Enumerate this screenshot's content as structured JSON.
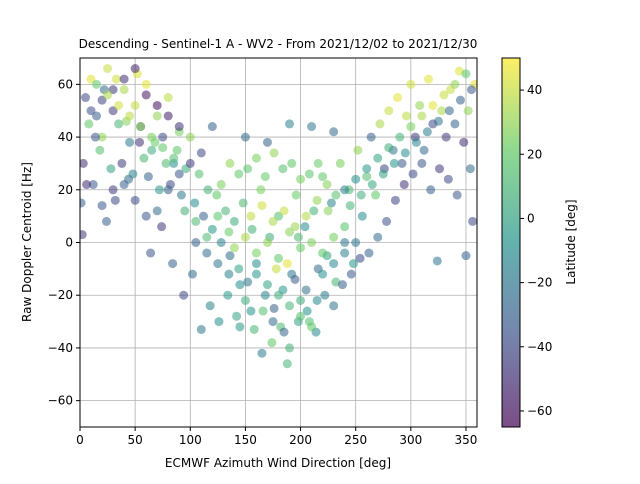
{
  "chart_data": {
    "type": "scatter",
    "title": "Descending - Sentinel-1 A - WV2 - From 2021/12/02 to 2021/12/30",
    "xlabel": "ECMWF Azimuth Wind Direction [deg]",
    "ylabel": "Raw Doppler Centroid [Hz]",
    "xlim": [
      0,
      360
    ],
    "ylim": [
      -70,
      70
    ],
    "xticks": [
      0,
      50,
      100,
      150,
      200,
      250,
      300,
      350
    ],
    "yticks": [
      -60,
      -40,
      -20,
      0,
      20,
      40,
      60
    ],
    "grid": true,
    "colorbar": {
      "label": "Latitude [deg]",
      "range": [
        -65,
        50
      ],
      "ticks": [
        -60,
        -40,
        -20,
        0,
        20,
        40
      ],
      "colormap": "viridis",
      "colors": [
        "#440154",
        "#3b528b",
        "#21918c",
        "#5ec962",
        "#fde725"
      ]
    },
    "point_alpha": 0.55,
    "points": [
      [
        5,
        55,
        -40
      ],
      [
        10,
        62,
        45
      ],
      [
        15,
        48,
        -30
      ],
      [
        20,
        40,
        30
      ],
      [
        25,
        66,
        40
      ],
      [
        30,
        50,
        -45
      ],
      [
        35,
        45,
        10
      ],
      [
        40,
        58,
        35
      ],
      [
        45,
        38,
        -20
      ],
      [
        50,
        52,
        40
      ],
      [
        55,
        44,
        -35
      ],
      [
        60,
        60,
        45
      ],
      [
        65,
        35,
        5
      ],
      [
        70,
        48,
        30
      ],
      [
        75,
        40,
        -40
      ],
      [
        80,
        55,
        38
      ],
      [
        85,
        30,
        -10
      ],
      [
        90,
        42,
        25
      ],
      [
        3,
        30,
        -50
      ],
      [
        8,
        45,
        20
      ],
      [
        12,
        22,
        -35
      ],
      [
        18,
        35,
        15
      ],
      [
        22,
        58,
        -25
      ],
      [
        28,
        28,
        0
      ],
      [
        33,
        62,
        42
      ],
      [
        38,
        30,
        -45
      ],
      [
        42,
        46,
        28
      ],
      [
        48,
        26,
        -15
      ],
      [
        52,
        64,
        44
      ],
      [
        58,
        32,
        10
      ],
      [
        62,
        25,
        -30
      ],
      [
        68,
        38,
        22
      ],
      [
        72,
        20,
        -5
      ],
      [
        78,
        30,
        12
      ],
      [
        82,
        22,
        -40
      ],
      [
        88,
        35,
        18
      ],
      [
        92,
        18,
        -20
      ],
      [
        96,
        28,
        5
      ],
      [
        100,
        40,
        30
      ],
      [
        104,
        15,
        -10
      ],
      [
        108,
        26,
        15
      ],
      [
        112,
        10,
        -30
      ],
      [
        116,
        20,
        8
      ],
      [
        120,
        5,
        -5
      ],
      [
        124,
        18,
        20
      ],
      [
        128,
        0,
        -15
      ],
      [
        132,
        12,
        10
      ],
      [
        136,
        -5,
        -25
      ],
      [
        140,
        8,
        5
      ],
      [
        144,
        -10,
        0
      ],
      [
        148,
        15,
        12
      ],
      [
        152,
        -15,
        -20
      ],
      [
        156,
        5,
        8
      ],
      [
        160,
        -8,
        -10
      ],
      [
        164,
        20,
        25
      ],
      [
        168,
        -20,
        -15
      ],
      [
        172,
        2,
        5
      ],
      [
        176,
        -25,
        -30
      ],
      [
        180,
        10,
        15
      ],
      [
        184,
        -18,
        -5
      ],
      [
        188,
        -46,
        10
      ],
      [
        192,
        -12,
        -20
      ],
      [
        196,
        18,
        22
      ],
      [
        200,
        -22,
        5
      ],
      [
        204,
        6,
        -10
      ],
      [
        208,
        -30,
        15
      ],
      [
        212,
        12,
        8
      ],
      [
        216,
        -10,
        -25
      ],
      [
        220,
        25,
        20
      ],
      [
        224,
        -5,
        0
      ],
      [
        228,
        15,
        -15
      ],
      [
        232,
        -15,
        10
      ],
      [
        236,
        30,
        25
      ],
      [
        240,
        0,
        -20
      ],
      [
        244,
        20,
        12
      ],
      [
        248,
        -8,
        -5
      ],
      [
        252,
        35,
        30
      ],
      [
        256,
        10,
        -10
      ],
      [
        260,
        25,
        15
      ],
      [
        264,
        40,
        -30
      ],
      [
        268,
        18,
        20
      ],
      [
        272,
        45,
        35
      ],
      [
        276,
        28,
        -40
      ],
      [
        280,
        50,
        40
      ],
      [
        284,
        35,
        -20
      ],
      [
        288,
        55,
        45
      ],
      [
        292,
        30,
        -35
      ],
      [
        296,
        48,
        38
      ],
      [
        300,
        60,
        42
      ],
      [
        304,
        40,
        -45
      ],
      [
        308,
        52,
        30
      ],
      [
        312,
        35,
        -25
      ],
      [
        316,
        62,
        45
      ],
      [
        320,
        45,
        -40
      ],
      [
        324,
        -7,
        -20
      ],
      [
        328,
        50,
        35
      ],
      [
        332,
        40,
        -45
      ],
      [
        336,
        58,
        40
      ],
      [
        340,
        45,
        -30
      ],
      [
        344,
        65,
        44
      ],
      [
        348,
        38,
        -50
      ],
      [
        352,
        50,
        30
      ],
      [
        356,
        8,
        -40
      ],
      [
        358,
        60,
        45
      ],
      [
        1,
        15,
        -30
      ],
      [
        2,
        3,
        -45
      ],
      [
        6,
        22,
        -50
      ],
      [
        14,
        40,
        -35
      ],
      [
        24,
        8,
        -30
      ],
      [
        32,
        16,
        -40
      ],
      [
        44,
        24,
        -25
      ],
      [
        54,
        38,
        -50
      ],
      [
        64,
        -4,
        -35
      ],
      [
        74,
        6,
        -45
      ],
      [
        84,
        -8,
        -30
      ],
      [
        94,
        -20,
        -40
      ],
      [
        102,
        -12,
        -25
      ],
      [
        110,
        -33,
        -20
      ],
      [
        118,
        -24,
        -15
      ],
      [
        126,
        -30,
        -10
      ],
      [
        134,
        -20,
        -5
      ],
      [
        142,
        -28,
        0
      ],
      [
        150,
        -22,
        5
      ],
      [
        158,
        -33,
        10
      ],
      [
        166,
        -26,
        15
      ],
      [
        174,
        -38,
        20
      ],
      [
        182,
        -32,
        12
      ],
      [
        190,
        -40,
        8
      ],
      [
        198,
        -30,
        0
      ],
      [
        206,
        -26,
        -8
      ],
      [
        214,
        -34,
        -12
      ],
      [
        222,
        -20,
        -18
      ],
      [
        230,
        -24,
        -22
      ],
      [
        238,
        -16,
        -30
      ],
      [
        246,
        -12,
        -35
      ],
      [
        254,
        -6,
        -40
      ],
      [
        262,
        -4,
        -30
      ],
      [
        270,
        2,
        -25
      ],
      [
        278,
        8,
        -38
      ],
      [
        286,
        16,
        -42
      ],
      [
        294,
        22,
        -48
      ],
      [
        302,
        26,
        -40
      ],
      [
        310,
        30,
        -35
      ],
      [
        318,
        20,
        -30
      ],
      [
        326,
        28,
        -45
      ],
      [
        334,
        24,
        -40
      ],
      [
        342,
        18,
        -35
      ],
      [
        350,
        -5,
        -30
      ],
      [
        354,
        28,
        -25
      ],
      [
        128,
        22,
        25
      ],
      [
        136,
        30,
        30
      ],
      [
        144,
        26,
        20
      ],
      [
        152,
        28,
        18
      ],
      [
        160,
        32,
        25
      ],
      [
        168,
        25,
        22
      ],
      [
        176,
        34,
        30
      ],
      [
        184,
        28,
        15
      ],
      [
        192,
        30,
        20
      ],
      [
        200,
        24,
        25
      ],
      [
        208,
        26,
        18
      ],
      [
        216,
        30,
        22
      ],
      [
        224,
        22,
        28
      ],
      [
        232,
        18,
        16
      ],
      [
        150,
        40,
        -25
      ],
      [
        170,
        38,
        -30
      ],
      [
        190,
        45,
        -15
      ],
      [
        210,
        44,
        -20
      ],
      [
        230,
        42,
        -25
      ],
      [
        120,
        44,
        -30
      ],
      [
        110,
        34,
        -40
      ],
      [
        100,
        30,
        -45
      ],
      [
        90,
        26,
        -35
      ],
      [
        80,
        20,
        -30
      ],
      [
        70,
        12,
        -25
      ],
      [
        60,
        10,
        -35
      ],
      [
        50,
        16,
        -40
      ],
      [
        40,
        22,
        -30
      ],
      [
        30,
        20,
        -45
      ],
      [
        20,
        14,
        -35
      ],
      [
        140,
        -2,
        30
      ],
      [
        150,
        2,
        35
      ],
      [
        160,
        -4,
        25
      ],
      [
        170,
        0,
        30
      ],
      [
        180,
        -6,
        20
      ],
      [
        190,
        4,
        28
      ],
      [
        200,
        -2,
        22
      ],
      [
        210,
        0,
        26
      ],
      [
        220,
        -4,
        18
      ],
      [
        230,
        2,
        24
      ],
      [
        240,
        6,
        16
      ],
      [
        155,
        10,
        38
      ],
      [
        165,
        14,
        42
      ],
      [
        175,
        8,
        35
      ],
      [
        185,
        12,
        40
      ],
      [
        195,
        6,
        32
      ],
      [
        205,
        10,
        36
      ],
      [
        215,
        16,
        30
      ],
      [
        225,
        12,
        28
      ],
      [
        135,
        4,
        22
      ],
      [
        125,
        10,
        18
      ],
      [
        115,
        2,
        14
      ],
      [
        105,
        8,
        12
      ],
      [
        95,
        12,
        8
      ],
      [
        245,
        14,
        10
      ],
      [
        255,
        18,
        6
      ],
      [
        265,
        22,
        2
      ],
      [
        275,
        26,
        -2
      ],
      [
        285,
        30,
        -6
      ],
      [
        295,
        34,
        -10
      ],
      [
        305,
        38,
        -14
      ],
      [
        315,
        42,
        -18
      ],
      [
        325,
        46,
        -22
      ],
      [
        335,
        50,
        -26
      ],
      [
        345,
        54,
        -30
      ],
      [
        355,
        58,
        -34
      ],
      [
        10,
        50,
        -38
      ],
      [
        20,
        54,
        -42
      ],
      [
        30,
        58,
        -46
      ],
      [
        40,
        62,
        -50
      ],
      [
        50,
        66,
        -54
      ],
      [
        60,
        56,
        -58
      ],
      [
        70,
        52,
        -60
      ],
      [
        80,
        48,
        -55
      ],
      [
        90,
        44,
        -48
      ],
      [
        15,
        60,
        20
      ],
      [
        25,
        56,
        35
      ],
      [
        35,
        52,
        42
      ],
      [
        45,
        48,
        38
      ],
      [
        55,
        44,
        30
      ],
      [
        65,
        40,
        25
      ],
      [
        75,
        36,
        20
      ],
      [
        85,
        32,
        15
      ],
      [
        300,
        44,
        25
      ],
      [
        310,
        48,
        35
      ],
      [
        320,
        52,
        45
      ],
      [
        330,
        56,
        40
      ],
      [
        340,
        60,
        30
      ],
      [
        350,
        64,
        20
      ],
      [
        290,
        40,
        10
      ],
      [
        280,
        36,
        5
      ],
      [
        270,
        32,
        0
      ],
      [
        260,
        28,
        -5
      ],
      [
        250,
        24,
        -10
      ],
      [
        240,
        20,
        -15
      ],
      [
        160,
        -12,
        -5
      ],
      [
        170,
        -16,
        0
      ],
      [
        180,
        -20,
        5
      ],
      [
        190,
        -24,
        10
      ],
      [
        200,
        -28,
        15
      ],
      [
        210,
        -32,
        20
      ],
      [
        145,
        -16,
        -10
      ],
      [
        135,
        -12,
        -15
      ],
      [
        125,
        -8,
        -20
      ],
      [
        115,
        -4,
        -25
      ],
      [
        105,
        0,
        -30
      ],
      [
        220,
        -12,
        -8
      ],
      [
        230,
        -8,
        -12
      ],
      [
        240,
        -4,
        -16
      ],
      [
        250,
        0,
        -20
      ],
      [
        175,
        -30,
        -25
      ],
      [
        185,
        -34,
        -28
      ],
      [
        195,
        -14,
        -32
      ],
      [
        165,
        -42,
        -18
      ],
      [
        205,
        -18,
        -22
      ],
      [
        215,
        -22,
        -12
      ],
      [
        155,
        -26,
        -8
      ],
      [
        145,
        -32,
        -4
      ],
      [
        178,
        -10,
        40
      ],
      [
        188,
        -8,
        45
      ],
      [
        198,
        2,
        12
      ]
    ]
  }
}
